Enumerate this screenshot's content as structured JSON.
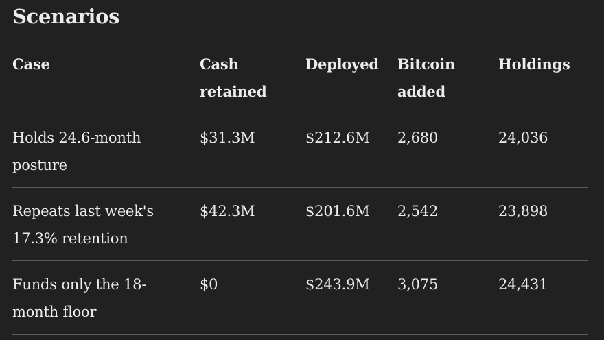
{
  "title": "Scenarios",
  "table": {
    "headers": [
      "Case",
      "Cash retained",
      "Deployed",
      "Bitcoin added",
      "Holdings"
    ],
    "rows": [
      [
        "Holds 24.6-month posture",
        "$31.3M",
        "$212.6M",
        "2,680",
        "24,036"
      ],
      [
        "Repeats last week's 17.3% retention",
        "$42.3M",
        "$201.6M",
        "2,542",
        "23,898"
      ],
      [
        "Funds only the 18-month floor",
        "$0",
        "$243.9M",
        "3,075",
        "24,431"
      ]
    ]
  }
}
